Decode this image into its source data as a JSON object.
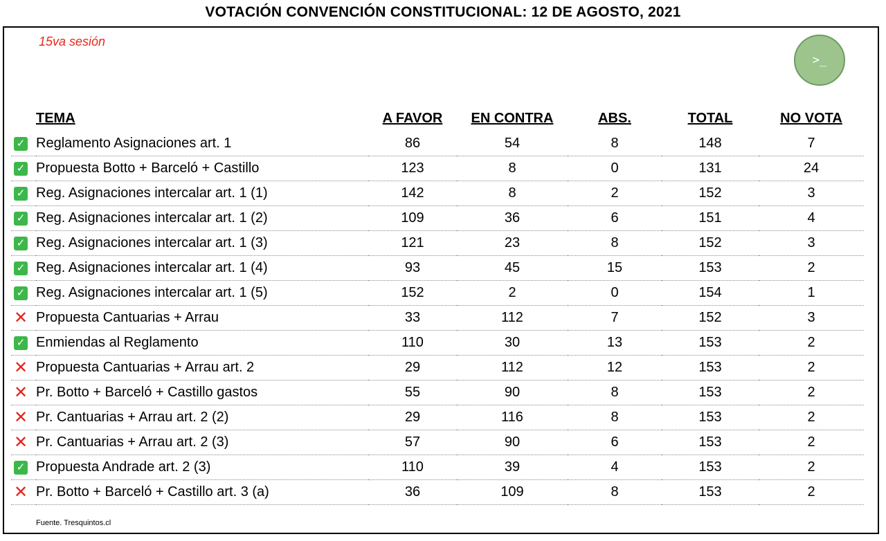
{
  "title": "VOTACIÓN CONVENCIÓN CONSTITUCIONAL: 12 DE AGOSTO, 2021",
  "session": "15va sesión",
  "terminal_button_label": ">_",
  "headers": {
    "tema": "TEMA",
    "a_favor": "A FAVOR",
    "en_contra": "EN CONTRA",
    "abs": "ABS.",
    "total": "TOTAL",
    "no_vota": "NO VOTA"
  },
  "colors": {
    "approved": "#3cb84a",
    "rejected": "#e3241b",
    "session": "#e8261b",
    "terminal": "#9ec48e"
  },
  "rows": [
    {
      "status": "approved",
      "tema": "Reglamento Asignaciones art. 1",
      "a_favor": "86",
      "en_contra": "54",
      "abs": "8",
      "total": "148",
      "no_vota": "7"
    },
    {
      "status": "approved",
      "tema": "Propuesta Botto + Barceló + Castillo",
      "a_favor": "123",
      "en_contra": "8",
      "abs": "0",
      "total": "131",
      "no_vota": "24"
    },
    {
      "status": "approved",
      "tema": "Reg. Asignaciones intercalar art. 1 (1)",
      "a_favor": "142",
      "en_contra": "8",
      "abs": "2",
      "total": "152",
      "no_vota": "3"
    },
    {
      "status": "approved",
      "tema": "Reg. Asignaciones intercalar art. 1 (2)",
      "a_favor": "109",
      "en_contra": "36",
      "abs": "6",
      "total": "151",
      "no_vota": "4"
    },
    {
      "status": "approved",
      "tema": "Reg. Asignaciones intercalar art. 1 (3)",
      "a_favor": "121",
      "en_contra": "23",
      "abs": "8",
      "total": "152",
      "no_vota": "3"
    },
    {
      "status": "approved",
      "tema": "Reg. Asignaciones intercalar art. 1 (4)",
      "a_favor": "93",
      "en_contra": "45",
      "abs": "15",
      "total": "153",
      "no_vota": "2"
    },
    {
      "status": "approved",
      "tema": "Reg. Asignaciones intercalar art. 1 (5)",
      "a_favor": "152",
      "en_contra": "2",
      "abs": "0",
      "total": "154",
      "no_vota": "1"
    },
    {
      "status": "rejected",
      "tema": "Propuesta Cantuarias + Arrau",
      "a_favor": "33",
      "en_contra": "112",
      "abs": "7",
      "total": "152",
      "no_vota": "3"
    },
    {
      "status": "approved",
      "tema": "Enmiendas al Reglamento",
      "a_favor": "110",
      "en_contra": "30",
      "abs": "13",
      "total": "153",
      "no_vota": "2"
    },
    {
      "status": "rejected",
      "tema": "Propuesta Cantuarias + Arrau art. 2",
      "a_favor": "29",
      "en_contra": "112",
      "abs": "12",
      "total": "153",
      "no_vota": "2"
    },
    {
      "status": "rejected",
      "tema": "Pr. Botto + Barceló + Castillo gastos",
      "a_favor": "55",
      "en_contra": "90",
      "abs": "8",
      "total": "153",
      "no_vota": "2"
    },
    {
      "status": "rejected",
      "tema": "Pr. Cantuarias + Arrau art. 2 (2)",
      "a_favor": "29",
      "en_contra": "116",
      "abs": "8",
      "total": "153",
      "no_vota": "2"
    },
    {
      "status": "rejected",
      "tema": "Pr. Cantuarias + Arrau art. 2 (3)",
      "a_favor": "57",
      "en_contra": "90",
      "abs": "6",
      "total": "153",
      "no_vota": "2"
    },
    {
      "status": "approved",
      "tema": "Propuesta Andrade art. 2 (3)",
      "a_favor": "110",
      "en_contra": "39",
      "abs": "4",
      "total": "153",
      "no_vota": "2"
    },
    {
      "status": "rejected",
      "tema": "Pr. Botto + Barceló + Castillo art. 3 (a)",
      "a_favor": "36",
      "en_contra": "109",
      "abs": "8",
      "total": "153",
      "no_vota": "2"
    }
  ],
  "source": "Fuente. Tresquintos.cl"
}
